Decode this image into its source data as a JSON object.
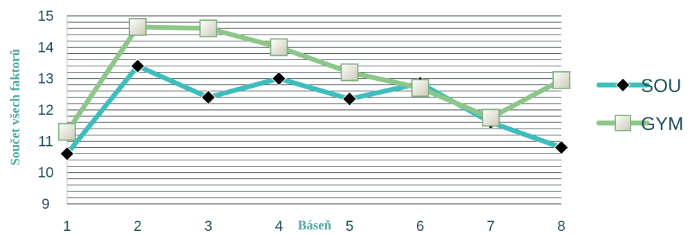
{
  "chart_data": {
    "type": "line",
    "title": "",
    "xlabel": "Báseň",
    "ylabel": "Součet všech faktorů",
    "x": [
      "1",
      "2",
      "3",
      "4",
      "5",
      "6",
      "7",
      "8"
    ],
    "ylim": [
      9,
      15
    ],
    "yticks": [
      "9",
      "10",
      "11",
      "12",
      "13",
      "14",
      "15"
    ],
    "grid": true,
    "legend_position": "right",
    "series": [
      {
        "name": "SOU",
        "values": [
          10.6,
          13.4,
          12.4,
          13.0,
          12.35,
          12.85,
          11.6,
          10.8
        ],
        "color": "#3dbdbb",
        "marker": "diamond",
        "marker_color": "#000000"
      },
      {
        "name": "GYM",
        "values": [
          11.3,
          14.65,
          14.6,
          14.0,
          13.2,
          12.7,
          11.75,
          12.95
        ],
        "color": "#8cc689",
        "marker": "square",
        "marker_color": "#f2f2e8"
      }
    ]
  }
}
